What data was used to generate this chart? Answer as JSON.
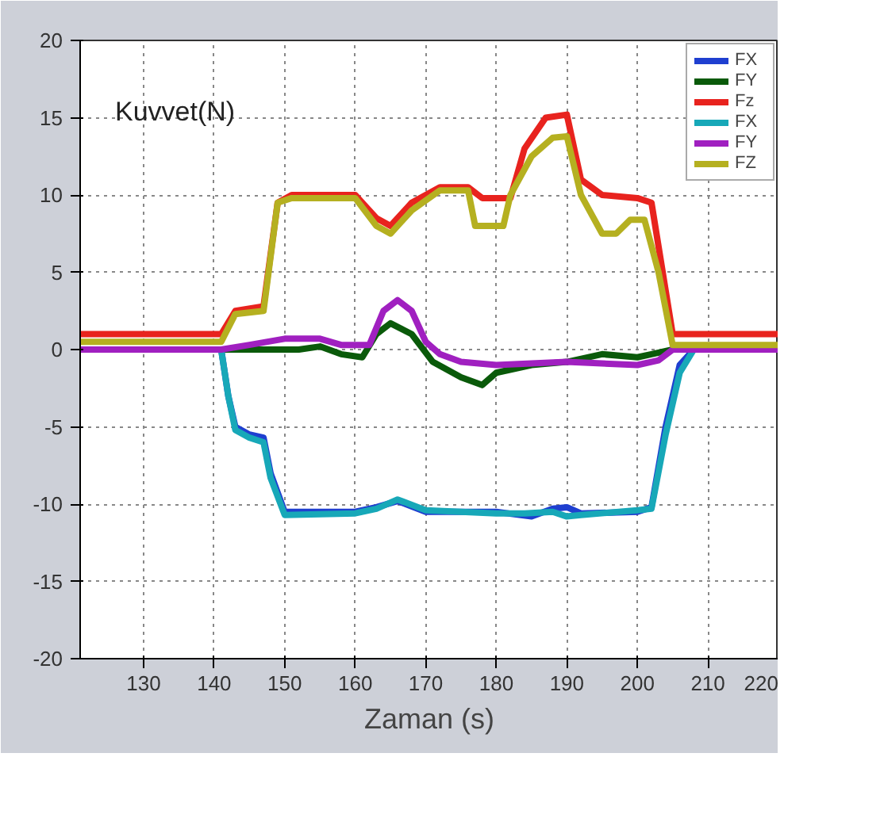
{
  "chart_data": {
    "type": "line",
    "ylabel": "Kuvvet(N)",
    "xlabel": "Zaman (s)",
    "xlim": [
      121,
      220
    ],
    "ylim": [
      -20,
      20
    ],
    "xticks": [
      130,
      140,
      150,
      160,
      170,
      180,
      190,
      200,
      210,
      220
    ],
    "yticks": [
      -20,
      -15,
      -10,
      -5,
      0,
      5,
      10,
      15,
      20
    ],
    "grid": true,
    "legend": "top right",
    "marker": "none",
    "line_style": "solid",
    "series": [
      {
        "name": "FX",
        "color": "#1f3fd0",
        "x": [
          121,
          141,
          142,
          143,
          145,
          147,
          148,
          150,
          160,
          163,
          166,
          170,
          180,
          185,
          188,
          190,
          192,
          200,
          202,
          204,
          206,
          208,
          220
        ],
        "values": [
          0,
          0,
          -3,
          -5,
          -5.5,
          -5.7,
          -8,
          -10.5,
          -10.5,
          -10.2,
          -9.8,
          -10.5,
          -10.5,
          -10.8,
          -10.3,
          -10.2,
          -10.6,
          -10.5,
          -10.2,
          -5,
          -1,
          0,
          0
        ]
      },
      {
        "name": "FY",
        "color": "#0a5a0a",
        "x": [
          121,
          152,
          155,
          158,
          161,
          163,
          165,
          168,
          171,
          175,
          178,
          180,
          185,
          190,
          195,
          200,
          202,
          205,
          220
        ],
        "values": [
          0,
          0,
          0.2,
          -0.3,
          -0.5,
          1,
          1.7,
          1,
          -0.8,
          -1.8,
          -2.3,
          -1.5,
          -1,
          -0.8,
          -0.3,
          -0.5,
          -0.3,
          0,
          0
        ]
      },
      {
        "name": "Fz",
        "color": "#e8231e",
        "x": [
          121,
          141,
          143,
          147,
          149,
          151,
          160,
          163,
          165,
          168,
          172,
          176,
          178,
          182,
          184,
          187,
          190,
          192,
          195,
          200,
          202,
          205,
          220
        ],
        "values": [
          1,
          1,
          2.5,
          2.8,
          9.5,
          10,
          10,
          8.5,
          8,
          9.5,
          10.5,
          10.5,
          9.8,
          9.8,
          13,
          15,
          15.2,
          11,
          10,
          9.8,
          9.5,
          1,
          1
        ]
      },
      {
        "name": "FX",
        "color": "#17a8b8",
        "x": [
          121,
          141,
          142,
          143,
          145,
          147,
          148,
          150,
          160,
          163,
          166,
          170,
          180,
          184,
          188,
          190,
          192,
          200,
          202,
          204,
          206,
          208,
          220
        ],
        "values": [
          0,
          0,
          -3,
          -5.2,
          -5.7,
          -6,
          -8.3,
          -10.7,
          -10.6,
          -10.3,
          -9.7,
          -10.4,
          -10.6,
          -10.6,
          -10.5,
          -10.8,
          -10.7,
          -10.4,
          -10.3,
          -5.5,
          -1.5,
          0,
          0
        ]
      },
      {
        "name": "FY",
        "color": "#a020c0",
        "x": [
          121,
          141,
          145,
          150,
          155,
          158,
          162,
          164,
          166,
          168,
          170,
          172,
          175,
          180,
          190,
          200,
          203,
          205,
          220
        ],
        "values": [
          0,
          0,
          0.3,
          0.7,
          0.7,
          0.3,
          0.3,
          2.5,
          3.2,
          2.5,
          0.5,
          -0.3,
          -0.8,
          -1,
          -0.8,
          -1,
          -0.7,
          0,
          0
        ]
      },
      {
        "name": "FZ",
        "color": "#b5b020",
        "x": [
          121,
          141,
          143,
          147,
          149,
          151,
          160,
          163,
          165,
          168,
          172,
          176,
          177,
          181,
          182,
          185,
          188,
          190,
          192,
          195,
          197,
          199,
          201,
          203,
          205,
          220
        ],
        "values": [
          0.5,
          0.5,
          2.3,
          2.5,
          9.5,
          9.8,
          9.8,
          8,
          7.5,
          9,
          10.3,
          10.3,
          8,
          8,
          10,
          12.5,
          13.7,
          13.8,
          10,
          7.5,
          7.5,
          8.4,
          8.4,
          5,
          0.3,
          0.3
        ]
      }
    ]
  }
}
